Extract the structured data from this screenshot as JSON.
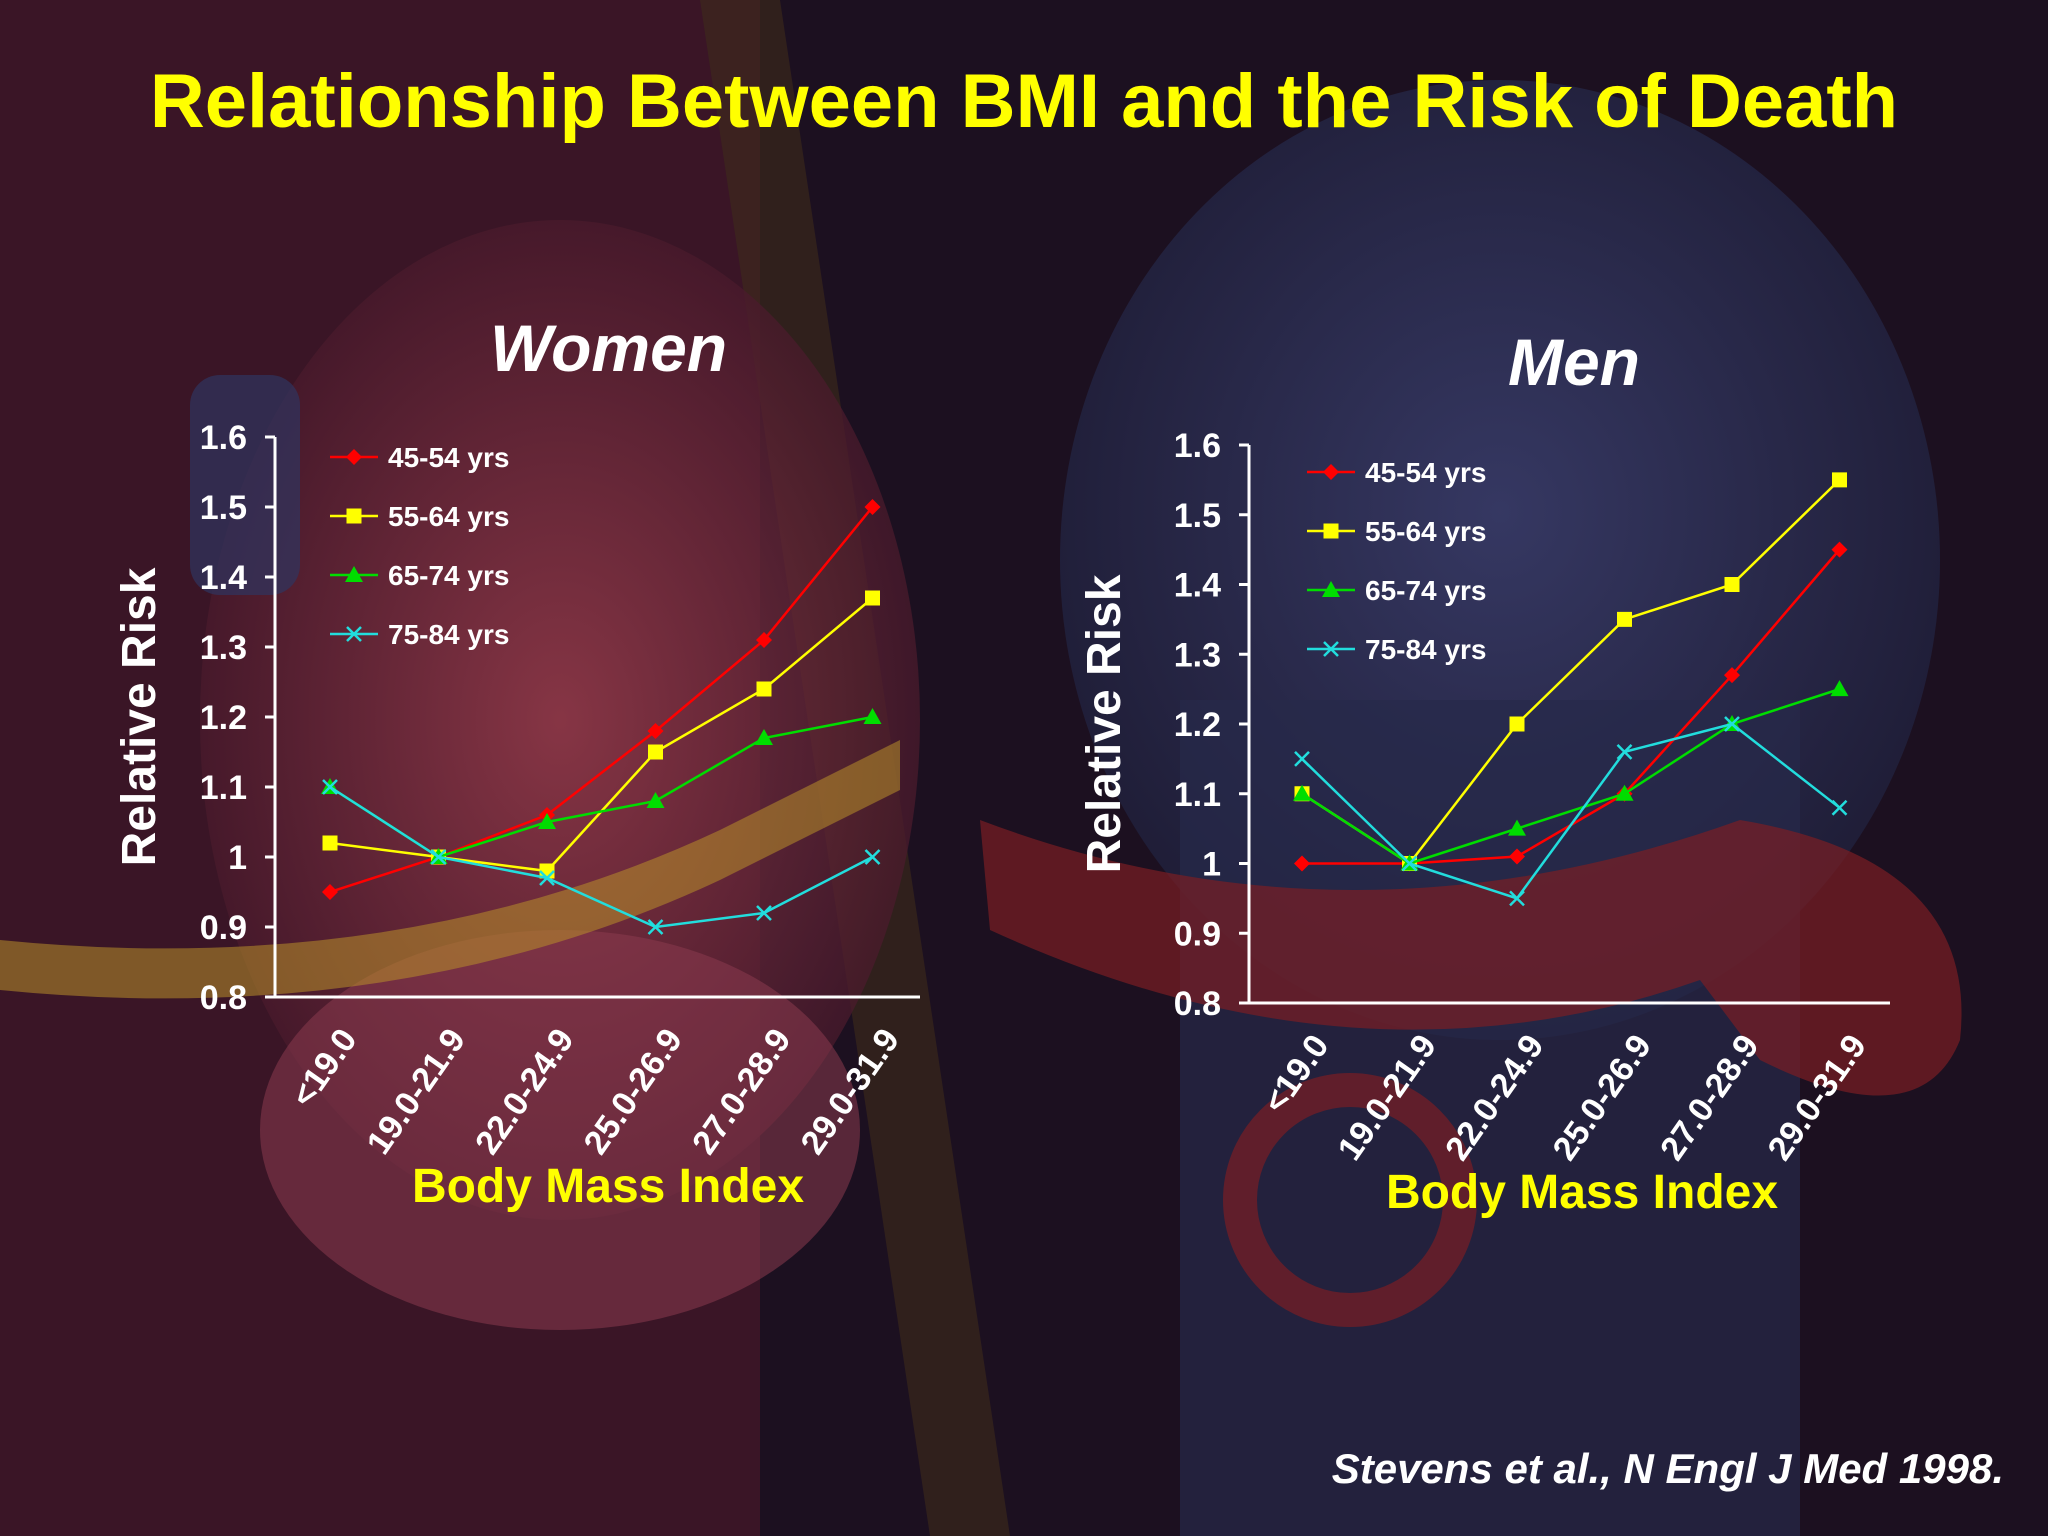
{
  "title": "Relationship Between BMI and the Risk of Death",
  "citation": "Stevens et al., N Engl J Med 1998.",
  "colors": {
    "title": "#ffff00",
    "axis_title": "#ffff00",
    "text": "#ffffff",
    "series": {
      "45-54 yrs": "#ff0000",
      "55-64 yrs": "#ffff00",
      "65-74 yrs": "#00dd00",
      "75-84 yrs": "#22dddd"
    }
  },
  "chart_data": [
    {
      "type": "line",
      "title": "Women",
      "xlabel": "Body Mass Index",
      "ylabel": "Relative Risk",
      "categories": [
        "<19.0",
        "19.0-21.9",
        "22.0-24.9",
        "25.0-26.9",
        "27.0-28.9",
        "29.0-31.9"
      ],
      "ylim": [
        0.8,
        1.6
      ],
      "yticks": [
        "0.8",
        "0.9",
        "1",
        "1.1",
        "1.2",
        "1.3",
        "1.4",
        "1.5",
        "1.6"
      ],
      "legend": "top-left",
      "grid": false,
      "series": [
        {
          "name": "45-54 yrs",
          "marker": "diamond",
          "values": [
            0.95,
            1.0,
            1.06,
            1.18,
            1.31,
            1.5
          ]
        },
        {
          "name": "55-64 yrs",
          "marker": "square",
          "values": [
            1.02,
            1.0,
            0.98,
            1.15,
            1.24,
            1.37
          ]
        },
        {
          "name": "65-74 yrs",
          "marker": "triangle",
          "values": [
            1.1,
            1.0,
            1.05,
            1.08,
            1.17,
            1.2
          ]
        },
        {
          "name": "75-84 yrs",
          "marker": "x",
          "values": [
            1.1,
            1.0,
            0.97,
            0.9,
            0.92,
            1.0
          ]
        }
      ]
    },
    {
      "type": "line",
      "title": "Men",
      "xlabel": "Body Mass Index",
      "ylabel": "Relative Risk",
      "categories": [
        "<19.0",
        "19.0-21.9",
        "22.0-24.9",
        "25.0-26.9",
        "27.0-28.9",
        "29.0-31.9"
      ],
      "ylim": [
        0.8,
        1.6
      ],
      "yticks": [
        "0.8",
        "0.9",
        "1",
        "1.1",
        "1.2",
        "1.3",
        "1.4",
        "1.5",
        "1.6"
      ],
      "legend": "top-left",
      "grid": false,
      "series": [
        {
          "name": "45-54 yrs",
          "marker": "diamond",
          "values": [
            1.0,
            1.0,
            1.01,
            1.1,
            1.27,
            1.45
          ]
        },
        {
          "name": "55-64 yrs",
          "marker": "square",
          "values": [
            1.1,
            1.0,
            1.2,
            1.35,
            1.4,
            1.55
          ]
        },
        {
          "name": "65-74 yrs",
          "marker": "triangle",
          "values": [
            1.1,
            1.0,
            1.05,
            1.1,
            1.2,
            1.25
          ]
        },
        {
          "name": "75-84 yrs",
          "marker": "x",
          "values": [
            1.15,
            1.0,
            0.95,
            1.16,
            1.2,
            1.08
          ]
        }
      ]
    }
  ]
}
